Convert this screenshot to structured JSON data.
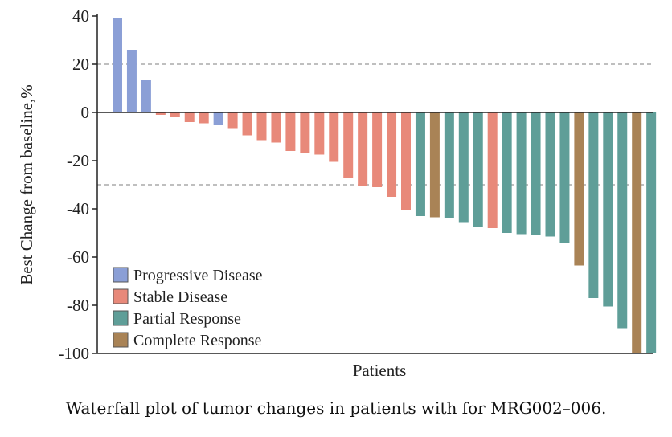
{
  "caption": "Waterfall plot of tumor changes in patients with for MRG002–006.",
  "colors": {
    "Progressive Disease": "#8b9fd6",
    "Stable Disease": "#e8897a",
    "Partial Response": "#5f9e98",
    "Complete Response": "#a98356",
    "axis": "#222222",
    "reference_line": "#999999"
  },
  "chart_data": {
    "type": "bar",
    "title": "",
    "xlabel": "Patients",
    "ylabel": "Best Change from baseline,%",
    "ylim": [
      -100,
      40
    ],
    "yticks": [
      40,
      20,
      0,
      -20,
      -40,
      -60,
      -80,
      -100
    ],
    "reference_lines": [
      20,
      -30
    ],
    "legend": {
      "placement": "bottom-left",
      "entries": [
        "Progressive Disease",
        "Stable Disease",
        "Partial Response",
        "Complete Response"
      ]
    },
    "bars": [
      {
        "value": 39,
        "response": "Progressive Disease"
      },
      {
        "value": 26,
        "response": "Progressive Disease"
      },
      {
        "value": 13.5,
        "response": "Progressive Disease"
      },
      {
        "value": -1,
        "response": "Stable Disease"
      },
      {
        "value": -2,
        "response": "Stable Disease"
      },
      {
        "value": -4,
        "response": "Stable Disease"
      },
      {
        "value": -4.5,
        "response": "Stable Disease"
      },
      {
        "value": -5,
        "response": "Progressive Disease"
      },
      {
        "value": -6.5,
        "response": "Stable Disease"
      },
      {
        "value": -9.5,
        "response": "Stable Disease"
      },
      {
        "value": -11.5,
        "response": "Stable Disease"
      },
      {
        "value": -12.5,
        "response": "Stable Disease"
      },
      {
        "value": -16,
        "response": "Stable Disease"
      },
      {
        "value": -17,
        "response": "Stable Disease"
      },
      {
        "value": -17.5,
        "response": "Stable Disease"
      },
      {
        "value": -20.5,
        "response": "Stable Disease"
      },
      {
        "value": -27,
        "response": "Stable Disease"
      },
      {
        "value": -30.5,
        "response": "Stable Disease"
      },
      {
        "value": -31,
        "response": "Stable Disease"
      },
      {
        "value": -35,
        "response": "Stable Disease"
      },
      {
        "value": -40.5,
        "response": "Stable Disease"
      },
      {
        "value": -43,
        "response": "Partial Response"
      },
      {
        "value": -43.5,
        "response": "Complete Response"
      },
      {
        "value": -44,
        "response": "Partial Response"
      },
      {
        "value": -45.5,
        "response": "Partial Response"
      },
      {
        "value": -47.5,
        "response": "Partial Response"
      },
      {
        "value": -48,
        "response": "Stable Disease"
      },
      {
        "value": -50,
        "response": "Partial Response"
      },
      {
        "value": -50.5,
        "response": "Partial Response"
      },
      {
        "value": -51,
        "response": "Partial Response"
      },
      {
        "value": -51.5,
        "response": "Partial Response"
      },
      {
        "value": -54,
        "response": "Partial Response"
      },
      {
        "value": -63.5,
        "response": "Complete Response"
      },
      {
        "value": -77,
        "response": "Partial Response"
      },
      {
        "value": -80.5,
        "response": "Partial Response"
      },
      {
        "value": -89.5,
        "response": "Partial Response"
      },
      {
        "value": -100,
        "response": "Complete Response"
      },
      {
        "value": -100,
        "response": "Partial Response"
      }
    ]
  }
}
